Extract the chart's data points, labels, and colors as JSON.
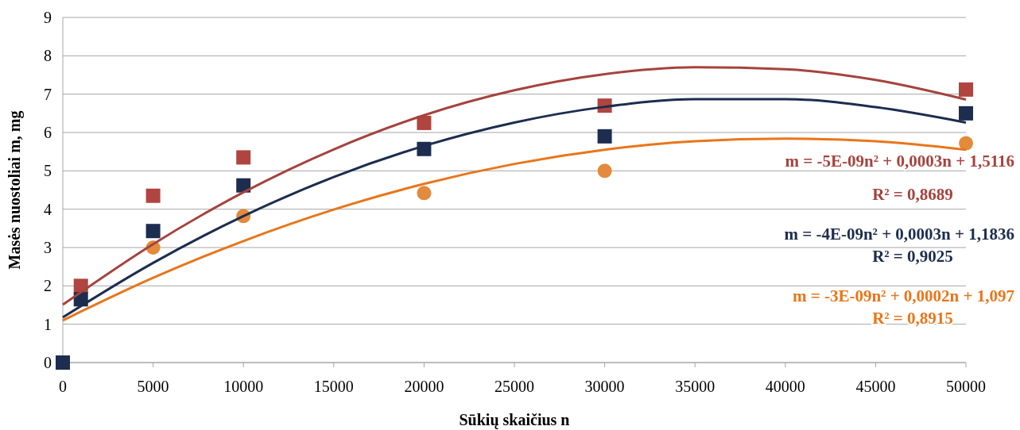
{
  "chart_data": {
    "type": "scatter",
    "xlabel": "Sūkių skaičius n",
    "ylabel": "Masės nuostoliai m, mg",
    "xlim": [
      0,
      50000
    ],
    "xticks": [
      0,
      5000,
      10000,
      15000,
      20000,
      25000,
      30000,
      35000,
      40000,
      45000,
      50000
    ],
    "ylim": [
      0,
      9
    ],
    "yticks": [
      0,
      1,
      2,
      3,
      4,
      5,
      6,
      7,
      8,
      9
    ],
    "grid": "y",
    "series": [
      {
        "type": "line",
        "color": "#a5433e",
        "marker": "none",
        "x": [
          0,
          5000,
          10000,
          15000,
          20000,
          25000,
          30000,
          35000,
          40000,
          45000,
          50000
        ],
        "values": [
          1.51,
          3.09,
          4.44,
          5.56,
          6.45,
          7.1,
          7.52,
          7.7,
          7.65,
          7.37,
          6.86
        ]
      },
      {
        "type": "line",
        "color": "#1c2d4f",
        "marker": "none",
        "x": [
          0,
          5000,
          10000,
          15000,
          20000,
          25000,
          30000,
          35000,
          40000,
          45000,
          50000
        ],
        "values": [
          1.18,
          2.6,
          3.82,
          4.84,
          5.65,
          6.26,
          6.67,
          6.87,
          6.87,
          6.66,
          6.26
        ]
      },
      {
        "type": "line",
        "color": "#e8761b",
        "marker": "none",
        "x": [
          0,
          5000,
          10000,
          15000,
          20000,
          25000,
          30000,
          35000,
          40000,
          45000,
          50000
        ],
        "values": [
          1.1,
          2.21,
          3.17,
          3.99,
          4.66,
          5.18,
          5.55,
          5.77,
          5.84,
          5.77,
          5.55
        ]
      },
      {
        "color": "#b0453f",
        "marker": "square",
        "x": [
          1000,
          5000,
          10000,
          20000,
          30000,
          50000
        ],
        "values": [
          2.0,
          4.35,
          5.35,
          6.25,
          6.7,
          7.12
        ]
      },
      {
        "color": "#1c2d4f",
        "marker": "square",
        "x": [
          0,
          1000,
          5000,
          10000,
          20000,
          30000,
          50000
        ],
        "values": [
          0,
          1.65,
          3.43,
          4.62,
          5.57,
          5.9,
          6.5
        ]
      },
      {
        "color": "#e38a3c",
        "marker": "circle",
        "x": [
          5000,
          10000,
          20000,
          30000,
          50000
        ],
        "values": [
          3.0,
          3.82,
          4.42,
          5.0,
          5.72
        ]
      }
    ],
    "annotations": [
      "m = -5E-09n² + 0,0003n + 1,5116",
      "R² = 0,8689",
      "m = -4E-09n² + 0,0003n + 1,1836",
      "R² = 0,9025",
      "m = -3E-09n² + 0,0002n + 1,097",
      "R² = 0,8915"
    ]
  }
}
